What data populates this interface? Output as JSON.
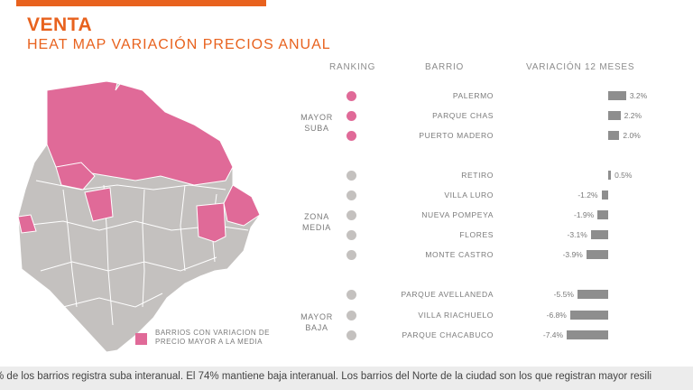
{
  "header": {
    "title": "VENTA",
    "subtitle": "HEAT MAP VARIACIÓN PRECIOS ANUAL"
  },
  "columns": {
    "ranking": "RANKING",
    "barrio": "BARRIO",
    "variacion": "VARIACIÓN 12 MESES"
  },
  "groups": [
    {
      "line1": "MAYOR",
      "line2": "SUBA"
    },
    {
      "line1": "ZONA",
      "line2": "MEDIA"
    },
    {
      "line1": "MAYOR",
      "line2": "BAJA"
    }
  ],
  "colors": {
    "accent": "#e8621e",
    "above_average": "#e06a98",
    "below_average": "#c4c1bf",
    "bar": "#8e8e8e"
  },
  "legend": {
    "text": "BARRIOS CON VARIACION DE PRECIO MAYOR A LA MEDIA"
  },
  "footer": {
    "text": "% de los barrios registra suba interanual. El 74% mantiene baja interanual. Los barrios del Norte de la ciudad son los que registran mayor resili"
  },
  "chart_data": {
    "type": "bar",
    "orientation": "horizontal",
    "title": "HEAT MAP VARIACIÓN PRECIOS ANUAL",
    "categories": [
      "PALERMO",
      "PARQUE CHAS",
      "PUERTO MADERO",
      "RETIRO",
      "VILLA LURO",
      "NUEVA POMPEYA",
      "FLORES",
      "MONTE CASTRO",
      "PARQUE AVELLANEDA",
      "VILLA RIACHUELO",
      "PARQUE CHACABUCO"
    ],
    "values": [
      3.2,
      2.2,
      2.0,
      0.5,
      -1.2,
      -1.9,
      -3.1,
      -3.9,
      -5.5,
      -6.8,
      -7.4
    ],
    "labels": [
      "3.2%",
      "2.2%",
      "2.0%",
      "0.5%",
      "-1.2%",
      "-1.9%",
      "-3.1%",
      "-3.9%",
      "-5.5%",
      "-6.8%",
      "-7.4%"
    ],
    "group": [
      "MAYOR SUBA",
      "MAYOR SUBA",
      "MAYOR SUBA",
      "ZONA MEDIA",
      "ZONA MEDIA",
      "ZONA MEDIA",
      "ZONA MEDIA",
      "ZONA MEDIA",
      "MAYOR BAJA",
      "MAYOR BAJA",
      "MAYOR BAJA"
    ],
    "xlabel": "VARIACIÓN 12 MESES",
    "ylabel": "BARRIO",
    "xlim": [
      -7.4,
      3.2
    ]
  }
}
